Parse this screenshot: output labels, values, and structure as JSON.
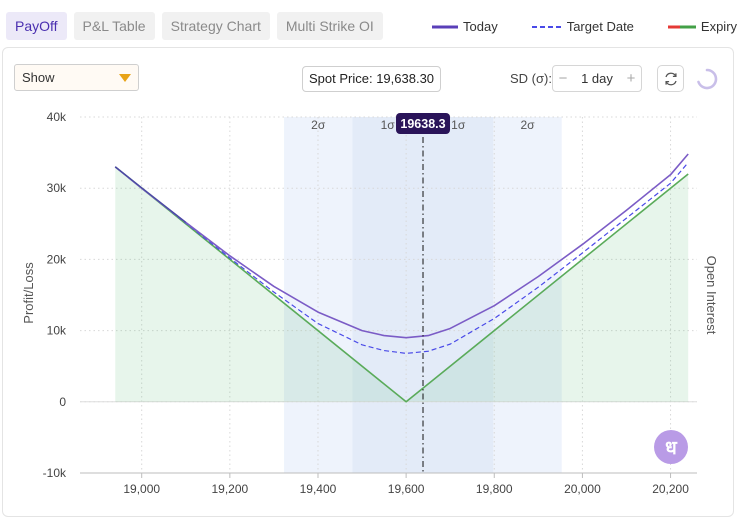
{
  "tabs": [
    {
      "label": "PayOff",
      "active": true
    },
    {
      "label": "P&L Table",
      "active": false
    },
    {
      "label": "Strategy Chart",
      "active": false
    },
    {
      "label": "Multi Strike OI",
      "active": false
    }
  ],
  "legend": [
    {
      "label": "Today",
      "style": "solid",
      "color": "#7b5cc6"
    },
    {
      "label": "Target Date",
      "style": "dashed",
      "color": "#4a4ae8"
    },
    {
      "label": "Expiry",
      "style": "solid",
      "colors": [
        "#e53935",
        "#43a047"
      ]
    }
  ],
  "controls": {
    "show_label": "Show",
    "spot_label": "Spot Price: 19,638.30",
    "sd_label": "SD (σ):",
    "sd_value": "1 day",
    "minus": "−",
    "plus": "+"
  },
  "logo_text": "ध",
  "chart_data": {
    "type": "line",
    "ylabel": "Profit/Loss",
    "y2label": "Open Interest",
    "xlim": [
      18860,
      20260
    ],
    "ylim": [
      -10000,
      40000
    ],
    "xticks": [
      19000,
      19200,
      19400,
      19600,
      19800,
      20000,
      20200
    ],
    "xtick_labels": [
      "19,000",
      "19,200",
      "19,400",
      "19,600",
      "19,800",
      "20,000",
      "20,200"
    ],
    "yticks": [
      -10000,
      0,
      10000,
      20000,
      30000,
      40000
    ],
    "ytick_labels": [
      "-10k",
      "0",
      "10k",
      "20k",
      "30k",
      "40k"
    ],
    "spot": 19638.3,
    "spot_label": "19638.3",
    "sigma_bands": [
      {
        "label": "2σ",
        "from": 19323,
        "to": 19478
      },
      {
        "label": "1σ",
        "from": 19478,
        "to": 19638.3
      },
      {
        "label": "1σ",
        "from": 19638.3,
        "to": 19798
      },
      {
        "label": "2σ",
        "from": 19798,
        "to": 19953
      }
    ],
    "series": [
      {
        "name": "Today",
        "color": "#7b5cc6",
        "dash": false,
        "x": [
          18940,
          19000,
          19100,
          19200,
          19300,
          19400,
          19500,
          19550,
          19600,
          19650,
          19700,
          19800,
          19900,
          20000,
          20100,
          20200,
          20240
        ],
        "y": [
          33000,
          30000,
          25200,
          20500,
          16200,
          12600,
          10000,
          9300,
          9000,
          9300,
          10300,
          13500,
          17600,
          22100,
          26900,
          31900,
          34800
        ]
      },
      {
        "name": "Target Date",
        "color": "#4a4ae8",
        "dash": true,
        "x": [
          18940,
          19000,
          19100,
          19200,
          19300,
          19400,
          19500,
          19550,
          19600,
          19650,
          19700,
          19800,
          19900,
          20000,
          20100,
          20200,
          20240
        ],
        "y": [
          33000,
          30000,
          25100,
          20200,
          15400,
          11000,
          8000,
          7200,
          6800,
          7100,
          8100,
          11700,
          16100,
          20900,
          25800,
          30700,
          33600
        ]
      },
      {
        "name": "Expiry",
        "color": "#5aab5a",
        "dash": false,
        "x": [
          18940,
          19600,
          20240
        ],
        "y": [
          33000,
          0,
          32000
        ]
      }
    ]
  }
}
